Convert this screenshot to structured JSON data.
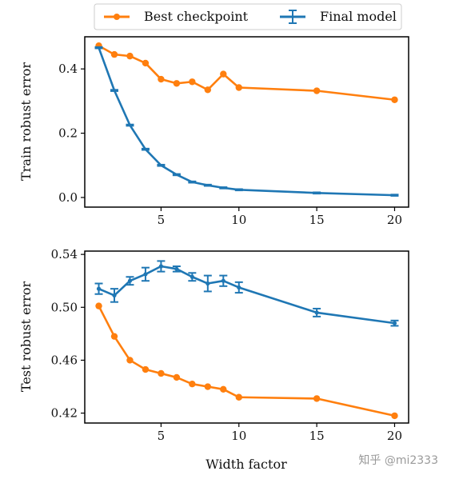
{
  "chart_data": [
    {
      "type": "line",
      "ylabel": "Train robust error",
      "xlabel": "",
      "xlim": [
        0.1,
        20.9
      ],
      "ylim": [
        -0.03,
        0.5
      ],
      "xticks": [
        5,
        10,
        15,
        20
      ],
      "xtick_labels": [
        "5",
        "10",
        "15",
        "20"
      ],
      "yticks": [
        0.0,
        0.2,
        0.4
      ],
      "ytick_labels": [
        "0.0",
        "0.2",
        "0.4"
      ],
      "series": [
        {
          "name": "Best checkpoint",
          "color": "#ff7f0e",
          "marker": "circle",
          "x": [
            1,
            2,
            3,
            4,
            5,
            6,
            7,
            8,
            9,
            10,
            15,
            20
          ],
          "y": [
            0.472,
            0.445,
            0.44,
            0.418,
            0.368,
            0.355,
            0.36,
            0.335,
            0.384,
            0.342,
            0.332,
            0.304
          ]
        },
        {
          "name": "Final model",
          "color": "#1f77b4",
          "marker": "errorbar",
          "x": [
            1,
            2,
            3,
            4,
            5,
            6,
            7,
            8,
            9,
            10,
            15,
            20
          ],
          "y": [
            0.466,
            0.333,
            0.225,
            0.15,
            0.1,
            0.071,
            0.048,
            0.038,
            0.03,
            0.024,
            0.014,
            0.007
          ],
          "err": [
            0.002,
            0.002,
            0.002,
            0.002,
            0.002,
            0.002,
            0.002,
            0.002,
            0.002,
            0.002,
            0.002,
            0.002
          ]
        }
      ]
    },
    {
      "type": "line",
      "ylabel": "Test robust error",
      "xlabel": "Width factor",
      "xlim": [
        0.1,
        20.9
      ],
      "ylim": [
        0.4125,
        0.5425
      ],
      "xticks": [
        5,
        10,
        15,
        20
      ],
      "xtick_labels": [
        "5",
        "10",
        "15",
        "20"
      ],
      "yticks": [
        0.42,
        0.46,
        0.5,
        0.54
      ],
      "ytick_labels": [
        "0.42",
        "0.46",
        "0.50",
        "0.54"
      ],
      "series": [
        {
          "name": "Best checkpoint",
          "color": "#ff7f0e",
          "marker": "circle",
          "x": [
            1,
            2,
            3,
            4,
            5,
            6,
            7,
            8,
            9,
            10,
            15,
            20
          ],
          "y": [
            0.501,
            0.478,
            0.46,
            0.453,
            0.45,
            0.447,
            0.442,
            0.44,
            0.438,
            0.432,
            0.431,
            0.418
          ]
        },
        {
          "name": "Final model",
          "color": "#1f77b4",
          "marker": "errorbar",
          "x": [
            1,
            2,
            3,
            4,
            5,
            6,
            7,
            8,
            9,
            10,
            15,
            20
          ],
          "y": [
            0.514,
            0.509,
            0.52,
            0.525,
            0.531,
            0.529,
            0.523,
            0.518,
            0.52,
            0.515,
            0.496,
            0.488
          ],
          "err": [
            0.004,
            0.005,
            0.003,
            0.005,
            0.004,
            0.002,
            0.003,
            0.006,
            0.004,
            0.004,
            0.003,
            0.002
          ]
        }
      ]
    }
  ],
  "legend": {
    "placement": "top-center",
    "entries": [
      {
        "label": "Best checkpoint",
        "color": "#ff7f0e",
        "marker": "circle"
      },
      {
        "label": "Final model",
        "color": "#1f77b4",
        "marker": "errorbar"
      }
    ]
  },
  "watermark": "知乎 @mi2333"
}
